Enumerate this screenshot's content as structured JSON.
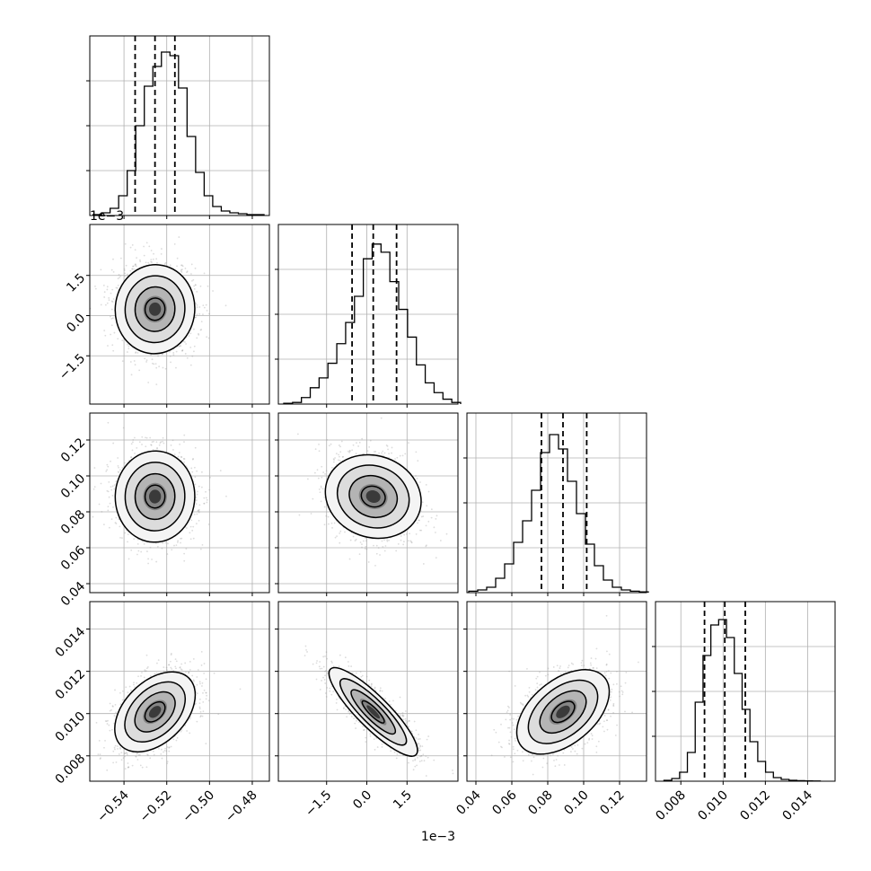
{
  "chart_data": {
    "type": "corner",
    "grid": true,
    "line_color": "#000000",
    "point_color": "#9a9a9a",
    "parameters": [
      {
        "xlim": [
          -0.556,
          -0.472
        ],
        "ticks": [
          -0.54,
          -0.52,
          -0.5,
          -0.48
        ],
        "tick_labels": [
          "−0.54",
          "−0.52",
          "−0.50",
          "−0.48"
        ],
        "quantiles": [
          -0.5348,
          -0.5255,
          -0.5162
        ],
        "hist": {
          "start": -0.5545,
          "bin_width": 0.004,
          "counts": [
            0.5,
            1.5,
            4.0,
            11.0,
            25.0,
            50.0,
            72.0,
            83.0,
            91.0,
            89.0,
            71.0,
            44.0,
            24.0,
            11.0,
            5.0,
            2.5,
            1.5,
            1.0,
            0.5,
            0.5
          ],
          "ymax": 100
        }
      },
      {
        "xlim": [
          -3.3,
          3.4
        ],
        "offset_text": "1e−3",
        "ticks": [
          -1.5,
          0.0,
          1.5
        ],
        "tick_labels": [
          "−1.5",
          "0.0",
          "1.5"
        ],
        "quantiles": [
          -0.55,
          0.24,
          1.11
        ],
        "hist": {
          "start": -3.1,
          "bin_width": 0.33,
          "counts": [
            0.5,
            1.0,
            4.0,
            10.0,
            16.0,
            25.0,
            37.0,
            50.0,
            66.0,
            89.0,
            98.0,
            93.0,
            75.0,
            58.0,
            41.0,
            24.0,
            13.0,
            7.0,
            3.0,
            1.0
          ],
          "ymax": 110
        }
      },
      {
        "xlim": [
          0.035,
          0.135
        ],
        "ticks": [
          0.04,
          0.06,
          0.08,
          0.1,
          0.12
        ],
        "tick_labels": [
          "0.04",
          "0.06",
          "0.08",
          "0.10",
          "0.12"
        ],
        "quantiles": [
          0.0765,
          0.0885,
          0.1017
        ],
        "hist": {
          "start": 0.036,
          "bin_width": 0.005,
          "counts": [
            0.8,
            1.5,
            3.0,
            8.0,
            16.0,
            28.0,
            40.0,
            57.0,
            78.0,
            88.0,
            80.0,
            62.0,
            44.0,
            27.0,
            15.0,
            7.0,
            3.0,
            1.5,
            0.8,
            0.4
          ],
          "ymax": 100
        }
      },
      {
        "xlim": [
          0.0068,
          0.0153
        ],
        "ticks": [
          0.008,
          0.01,
          0.012,
          0.014
        ],
        "tick_labels": [
          "0.008",
          "0.010",
          "0.012",
          "0.014"
        ],
        "quantiles": [
          0.00912,
          0.01008,
          0.01105
        ],
        "hist": {
          "start": 0.0072,
          "bin_width": 0.00037,
          "counts": [
            0.5,
            1.5,
            5.0,
            16.0,
            44.0,
            70.0,
            87.0,
            90.0,
            80.0,
            60.0,
            40.0,
            22.0,
            11.0,
            5.0,
            2.0,
            1.0,
            0.5,
            0.3,
            0.2,
            0.1
          ],
          "ymax": 100
        }
      }
    ],
    "correlations": [
      [
        1.0,
        -0.05,
        -0.02,
        0.45
      ],
      [
        -0.05,
        1.0,
        -0.2,
        -0.85
      ],
      [
        -0.02,
        -0.2,
        1.0,
        0.4
      ],
      [
        0.45,
        -0.85,
        0.4,
        1.0
      ]
    ],
    "stds": [
      0.0093,
      0.83,
      0.0127,
      0.00097
    ],
    "means": [
      -0.5255,
      0.24,
      0.0885,
      0.01008
    ]
  }
}
